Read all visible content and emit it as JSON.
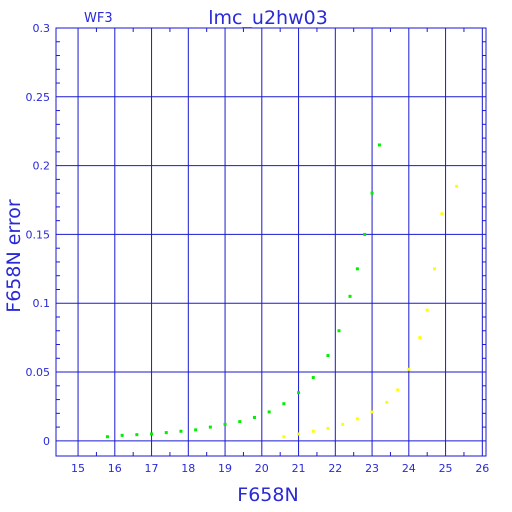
{
  "chart_data": {
    "type": "scatter",
    "title": "lmc_u2hw03",
    "subtitle": "WF3",
    "xlabel": "F658N",
    "ylabel": "F658N error",
    "xlim": [
      14.4,
      26.1
    ],
    "ylim": [
      -0.011,
      0.3
    ],
    "x_ticks": [
      15,
      16,
      17,
      18,
      19,
      20,
      21,
      22,
      23,
      24,
      25,
      26
    ],
    "y_ticks": [
      0,
      0.05,
      0.1,
      0.15,
      0.2,
      0.25,
      0.3
    ],
    "y_tick_labels": [
      "0",
      "0.05",
      "0.1",
      "0.15",
      "0.2",
      "0.25",
      "0.3"
    ],
    "grid": true,
    "colors": {
      "axes": "#1a1ad0",
      "grid": "#1a1ad0",
      "text": "#2a2ad6",
      "green_series": "#00ee00",
      "yellow_series": "#ffff00"
    },
    "series": [
      {
        "color": "green",
        "points": [
          [
            15.8,
            0.003
          ],
          [
            16.2,
            0.004
          ],
          [
            16.6,
            0.0045
          ],
          [
            17.0,
            0.005
          ],
          [
            17.4,
            0.006
          ],
          [
            17.8,
            0.007
          ],
          [
            18.2,
            0.008
          ],
          [
            18.6,
            0.01
          ],
          [
            19.0,
            0.012
          ],
          [
            19.4,
            0.014
          ],
          [
            19.8,
            0.017
          ],
          [
            20.2,
            0.021
          ],
          [
            20.6,
            0.027
          ],
          [
            21.0,
            0.035
          ],
          [
            21.4,
            0.046
          ],
          [
            21.8,
            0.062
          ],
          [
            22.1,
            0.08
          ],
          [
            22.4,
            0.105
          ],
          [
            22.6,
            0.125
          ],
          [
            22.8,
            0.15
          ],
          [
            23.0,
            0.18
          ],
          [
            23.2,
            0.215
          ]
        ]
      },
      {
        "color": "yellow",
        "points": [
          [
            20.6,
            0.003
          ],
          [
            21.0,
            0.005
          ],
          [
            21.4,
            0.007
          ],
          [
            21.8,
            0.009
          ],
          [
            22.2,
            0.012
          ],
          [
            22.6,
            0.016
          ],
          [
            23.0,
            0.021
          ],
          [
            23.4,
            0.028
          ],
          [
            23.7,
            0.037
          ],
          [
            24.0,
            0.052
          ],
          [
            24.3,
            0.075
          ],
          [
            24.5,
            0.095
          ],
          [
            24.7,
            0.125
          ],
          [
            24.9,
            0.165
          ],
          [
            25.3,
            0.185
          ]
        ]
      }
    ]
  }
}
